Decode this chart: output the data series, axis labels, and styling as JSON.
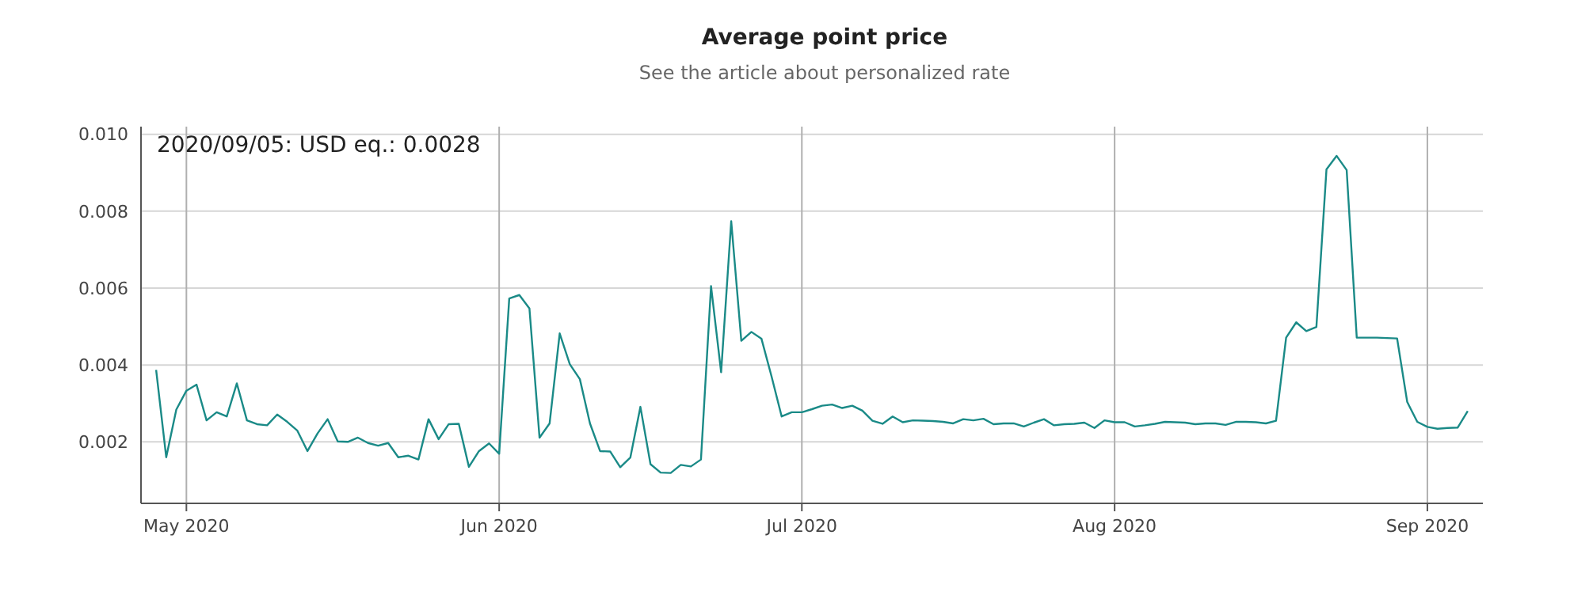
{
  "chart_data": {
    "type": "line",
    "title": "Average point price",
    "subtitle": "See the article about personalized rate",
    "x": [
      "2020-04-28",
      "2020-04-29",
      "2020-04-30",
      "2020-05-01",
      "2020-05-02",
      "2020-05-03",
      "2020-05-04",
      "2020-05-05",
      "2020-05-06",
      "2020-05-07",
      "2020-05-08",
      "2020-05-09",
      "2020-05-10",
      "2020-05-11",
      "2020-05-12",
      "2020-05-13",
      "2020-05-14",
      "2020-05-15",
      "2020-05-16",
      "2020-05-17",
      "2020-05-18",
      "2020-05-19",
      "2020-05-20",
      "2020-05-21",
      "2020-05-22",
      "2020-05-23",
      "2020-05-24",
      "2020-05-25",
      "2020-05-26",
      "2020-05-27",
      "2020-05-28",
      "2020-05-29",
      "2020-05-30",
      "2020-05-31",
      "2020-06-01",
      "2020-06-02",
      "2020-06-03",
      "2020-06-04",
      "2020-06-05",
      "2020-06-06",
      "2020-06-07",
      "2020-06-08",
      "2020-06-09",
      "2020-06-10",
      "2020-06-11",
      "2020-06-12",
      "2020-06-13",
      "2020-06-14",
      "2020-06-15",
      "2020-06-16",
      "2020-06-17",
      "2020-06-18",
      "2020-06-19",
      "2020-06-20",
      "2020-06-21",
      "2020-06-22",
      "2020-06-23",
      "2020-06-24",
      "2020-06-25",
      "2020-06-26",
      "2020-06-27",
      "2020-06-28",
      "2020-06-29",
      "2020-06-30",
      "2020-07-01",
      "2020-07-02",
      "2020-07-03",
      "2020-07-04",
      "2020-07-05",
      "2020-07-06",
      "2020-07-07",
      "2020-07-08",
      "2020-07-09",
      "2020-07-10",
      "2020-07-11",
      "2020-07-12",
      "2020-07-13",
      "2020-07-14",
      "2020-07-15",
      "2020-07-16",
      "2020-07-17",
      "2020-07-18",
      "2020-07-19",
      "2020-07-20",
      "2020-07-21",
      "2020-07-22",
      "2020-07-23",
      "2020-07-24",
      "2020-07-25",
      "2020-07-26",
      "2020-07-27",
      "2020-07-28",
      "2020-07-29",
      "2020-07-30",
      "2020-07-31",
      "2020-08-01",
      "2020-08-02",
      "2020-08-03",
      "2020-08-04",
      "2020-08-05",
      "2020-08-06",
      "2020-08-07",
      "2020-08-08",
      "2020-08-09",
      "2020-08-10",
      "2020-08-11",
      "2020-08-12",
      "2020-08-13",
      "2020-08-14",
      "2020-08-15",
      "2020-08-16",
      "2020-08-17",
      "2020-08-18",
      "2020-08-19",
      "2020-08-20",
      "2020-08-21",
      "2020-08-22",
      "2020-08-23",
      "2020-08-24",
      "2020-08-25",
      "2020-08-26",
      "2020-08-27",
      "2020-08-28",
      "2020-08-29",
      "2020-08-30",
      "2020-08-31",
      "2020-09-01",
      "2020-09-02",
      "2020-09-03",
      "2020-09-04",
      "2020-09-05"
    ],
    "series": [
      {
        "color": "#1a8a87",
        "values": [
          0.00387,
          0.0016,
          0.00284,
          0.00333,
          0.00349,
          0.00256,
          0.00277,
          0.00266,
          0.00352,
          0.00256,
          0.00246,
          0.00243,
          0.00271,
          0.00252,
          0.00229,
          0.00176,
          0.00222,
          0.00259,
          0.00201,
          0.002,
          0.00211,
          0.00197,
          0.0019,
          0.00197,
          0.0016,
          0.00164,
          0.00154,
          0.00259,
          0.00207,
          0.00246,
          0.00247,
          0.00135,
          0.00176,
          0.00196,
          0.00169,
          0.00573,
          0.00582,
          0.00547,
          0.00211,
          0.00248,
          0.00482,
          0.00402,
          0.00363,
          0.00248,
          0.00176,
          0.00175,
          0.00134,
          0.00159,
          0.00291,
          0.00142,
          0.0012,
          0.00119,
          0.0014,
          0.00136,
          0.00154,
          0.00605,
          0.00381,
          0.00774,
          0.00463,
          0.00486,
          0.00468,
          0.0037,
          0.00266,
          0.00277,
          0.00277,
          0.00285,
          0.00294,
          0.00297,
          0.00288,
          0.00294,
          0.00281,
          0.00255,
          0.00247,
          0.00266,
          0.00251,
          0.00256,
          0.00255,
          0.00254,
          0.00252,
          0.00248,
          0.00259,
          0.00256,
          0.0026,
          0.00246,
          0.00248,
          0.00248,
          0.0024,
          0.0025,
          0.00259,
          0.00243,
          0.00246,
          0.00247,
          0.0025,
          0.00236,
          0.00256,
          0.00251,
          0.00251,
          0.0024,
          0.00243,
          0.00247,
          0.00252,
          0.00251,
          0.0025,
          0.00246,
          0.00248,
          0.00248,
          0.00244,
          0.00252,
          0.00252,
          0.00251,
          0.00248,
          0.00255,
          0.00471,
          0.00511,
          0.00488,
          0.00499,
          0.00909,
          0.00944,
          0.00907,
          0.00471,
          0.00471,
          0.00471,
          0.0047,
          0.00469,
          0.00304,
          0.00252,
          0.00239,
          0.00234,
          0.00236,
          0.00237,
          0.0028
        ]
      }
    ],
    "xlim": [
      "2020-04-26T12:00",
      "2020-09-06T12:00"
    ],
    "xticks": [
      {
        "value": "2020-05-01",
        "label": "May 2020"
      },
      {
        "value": "2020-06-01",
        "label": "Jun 2020"
      },
      {
        "value": "2020-07-01",
        "label": "Jul 2020"
      },
      {
        "value": "2020-08-01",
        "label": "Aug 2020"
      },
      {
        "value": "2020-09-01",
        "label": "Sep 2020"
      }
    ],
    "ylim": [
      0.0004,
      0.0102
    ],
    "yticks": [
      0.002,
      0.004,
      0.006,
      0.008,
      {
        "value": 0.01,
        "label": "0.010"
      }
    ],
    "grid": true,
    "marker": "none",
    "line_style": "solid",
    "annotations": [
      "2020/09/05: USD eq.: 0.0028"
    ]
  }
}
